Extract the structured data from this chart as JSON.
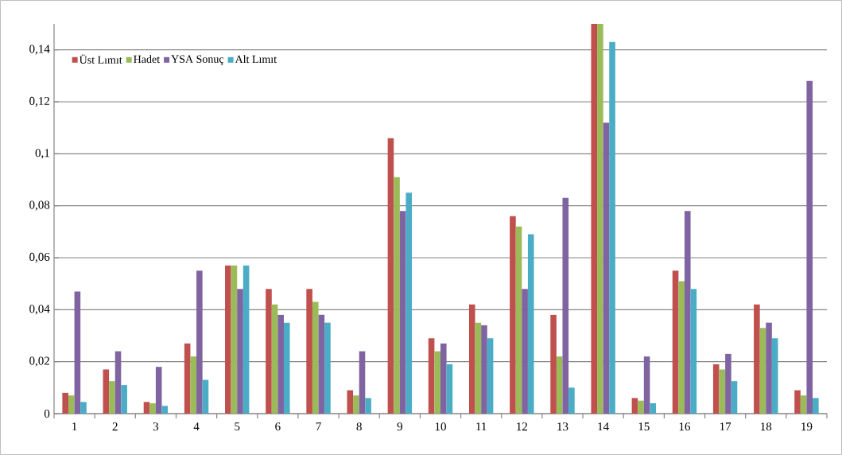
{
  "chart_data": {
    "type": "bar",
    "categories": [
      "1",
      "2",
      "3",
      "4",
      "5",
      "6",
      "7",
      "8",
      "9",
      "10",
      "11",
      "12",
      "13",
      "14",
      "15",
      "16",
      "17",
      "18",
      "19"
    ],
    "series": [
      {
        "name": "Üst Lımıt",
        "color": "#c0504d",
        "values": [
          0.008,
          0.017,
          0.0045,
          0.027,
          0.057,
          0.048,
          0.048,
          0.009,
          0.106,
          0.029,
          0.042,
          0.076,
          0.038,
          0.15,
          0.006,
          0.055,
          0.019,
          0.042,
          0.009
        ]
      },
      {
        "name": "Hadet",
        "color": "#9bbb59",
        "values": [
          0.007,
          0.0125,
          0.004,
          0.022,
          0.057,
          0.042,
          0.043,
          0.007,
          0.091,
          0.024,
          0.035,
          0.072,
          0.022,
          0.15,
          0.005,
          0.051,
          0.017,
          0.033,
          0.007
        ]
      },
      {
        "name": "YSA Sonuç",
        "color": "#8064a2",
        "values": [
          0.047,
          0.024,
          0.018,
          0.055,
          0.048,
          0.038,
          0.038,
          0.024,
          0.078,
          0.027,
          0.034,
          0.048,
          0.083,
          0.112,
          0.022,
          0.078,
          0.023,
          0.035,
          0.128
        ]
      },
      {
        "name": "Alt Lımıt",
        "color": "#4bacc6",
        "values": [
          0.0045,
          0.011,
          0.003,
          0.013,
          0.057,
          0.035,
          0.035,
          0.006,
          0.085,
          0.019,
          0.029,
          0.069,
          0.01,
          0.143,
          0.004,
          0.048,
          0.0125,
          0.029,
          0.006
        ]
      }
    ],
    "ylim": [
      0,
      0.15
    ],
    "yticks": [
      0,
      {
        "value": 0.02,
        "label": "0,02"
      },
      {
        "value": 0.04,
        "label": "0,04"
      },
      {
        "value": 0.06,
        "label": "0,06"
      },
      {
        "value": 0.08,
        "label": "0,08"
      },
      {
        "value": 0.1,
        "label": "0,1"
      },
      {
        "value": 0.12,
        "label": "0,12"
      },
      {
        "value": 0.14,
        "label": "0,14"
      }
    ],
    "grid": "y",
    "legend": "top left"
  }
}
